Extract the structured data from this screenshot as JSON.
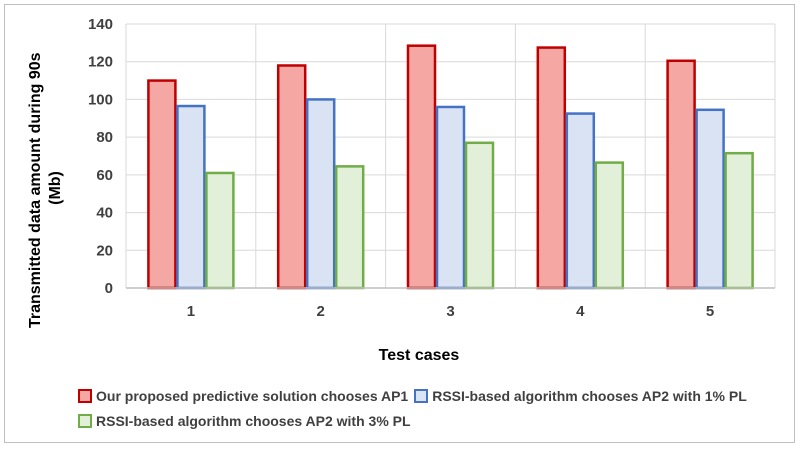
{
  "chart_data": {
    "type": "bar",
    "categories": [
      "1",
      "2",
      "3",
      "4",
      "5"
    ],
    "series": [
      {
        "name": "Our proposed predictive solution chooses AP1",
        "values": [
          110,
          118,
          128.5,
          127.5,
          120.5
        ],
        "fill": "#f4a7a3",
        "stroke": "#c00000"
      },
      {
        "name": "RSSI-based algorithm chooses AP2 with 1% PL",
        "values": [
          96.5,
          100,
          96,
          92.5,
          94.5
        ],
        "fill": "#dae3f3",
        "stroke": "#4472c4"
      },
      {
        "name": "RSSI-based algorithm chooses AP2 with 3% PL",
        "values": [
          61,
          64.5,
          77,
          66.5,
          71.5
        ],
        "fill": "#e2f0d9",
        "stroke": "#70ad47"
      }
    ],
    "xlabel": "Test cases",
    "ylabel": "Transmitted data amount during 90s (Mb)",
    "ylabel_lines": [
      "Transmitted data amount during 90s",
      "(Mb)"
    ],
    "ylim": [
      0,
      140
    ],
    "yticks": [
      0,
      20,
      40,
      60,
      80,
      100,
      120,
      140
    ],
    "grid": true,
    "legend_position": "bottom"
  }
}
